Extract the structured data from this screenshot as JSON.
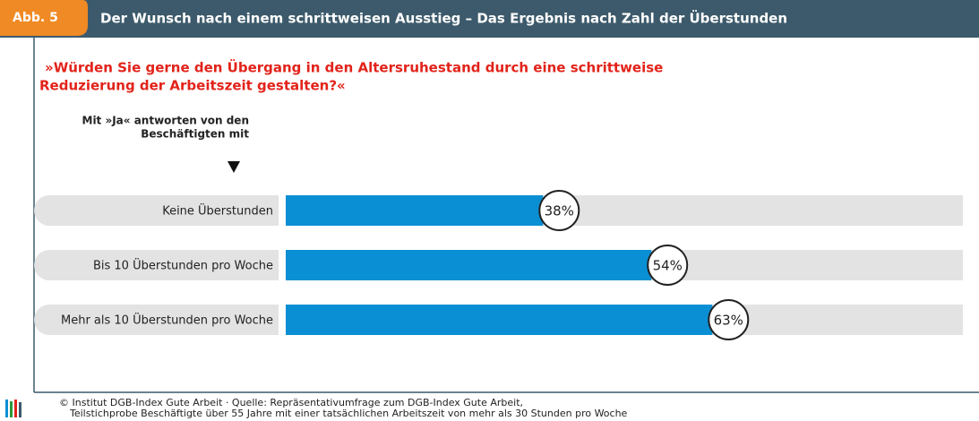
{
  "chart_data": {
    "type": "bar",
    "figure_label": "Abb. 5",
    "title": "Der Wunsch nach einem schrittweisen Ausstieg – Das Ergebnis nach Zahl der Überstunden",
    "subtitle": [
      "»Würden Sie gerne den Übergang in den Altersruhestand durch eine schrittweise",
      "Reduzierung der Arbeitszeit gestalten?«"
    ],
    "annotation": [
      "Mit »Ja« antworten von den",
      "Beschäftigten mit"
    ],
    "categories": [
      "Keine Überstunden",
      "Bis 10 Überstunden pro Woche",
      "Mehr als 10 Überstunden pro Woche"
    ],
    "values": [
      38,
      54,
      63
    ],
    "value_labels": [
      "38%",
      "54%",
      "63%"
    ],
    "xlim": [
      0,
      100
    ],
    "color": "#0a8fd4",
    "track_color": "#e3e3e3",
    "source": [
      "© Institut DGB-Index Gute Arbeit  ·  Quelle: Repräsentativumfrage zum DGB-Index Gute Arbeit,",
      "Teilstichprobe Beschäftigte über 55 Jahre mit einer tatsächlichen Arbeitszeit von mehr als 30 Stunden pro Woche"
    ]
  }
}
